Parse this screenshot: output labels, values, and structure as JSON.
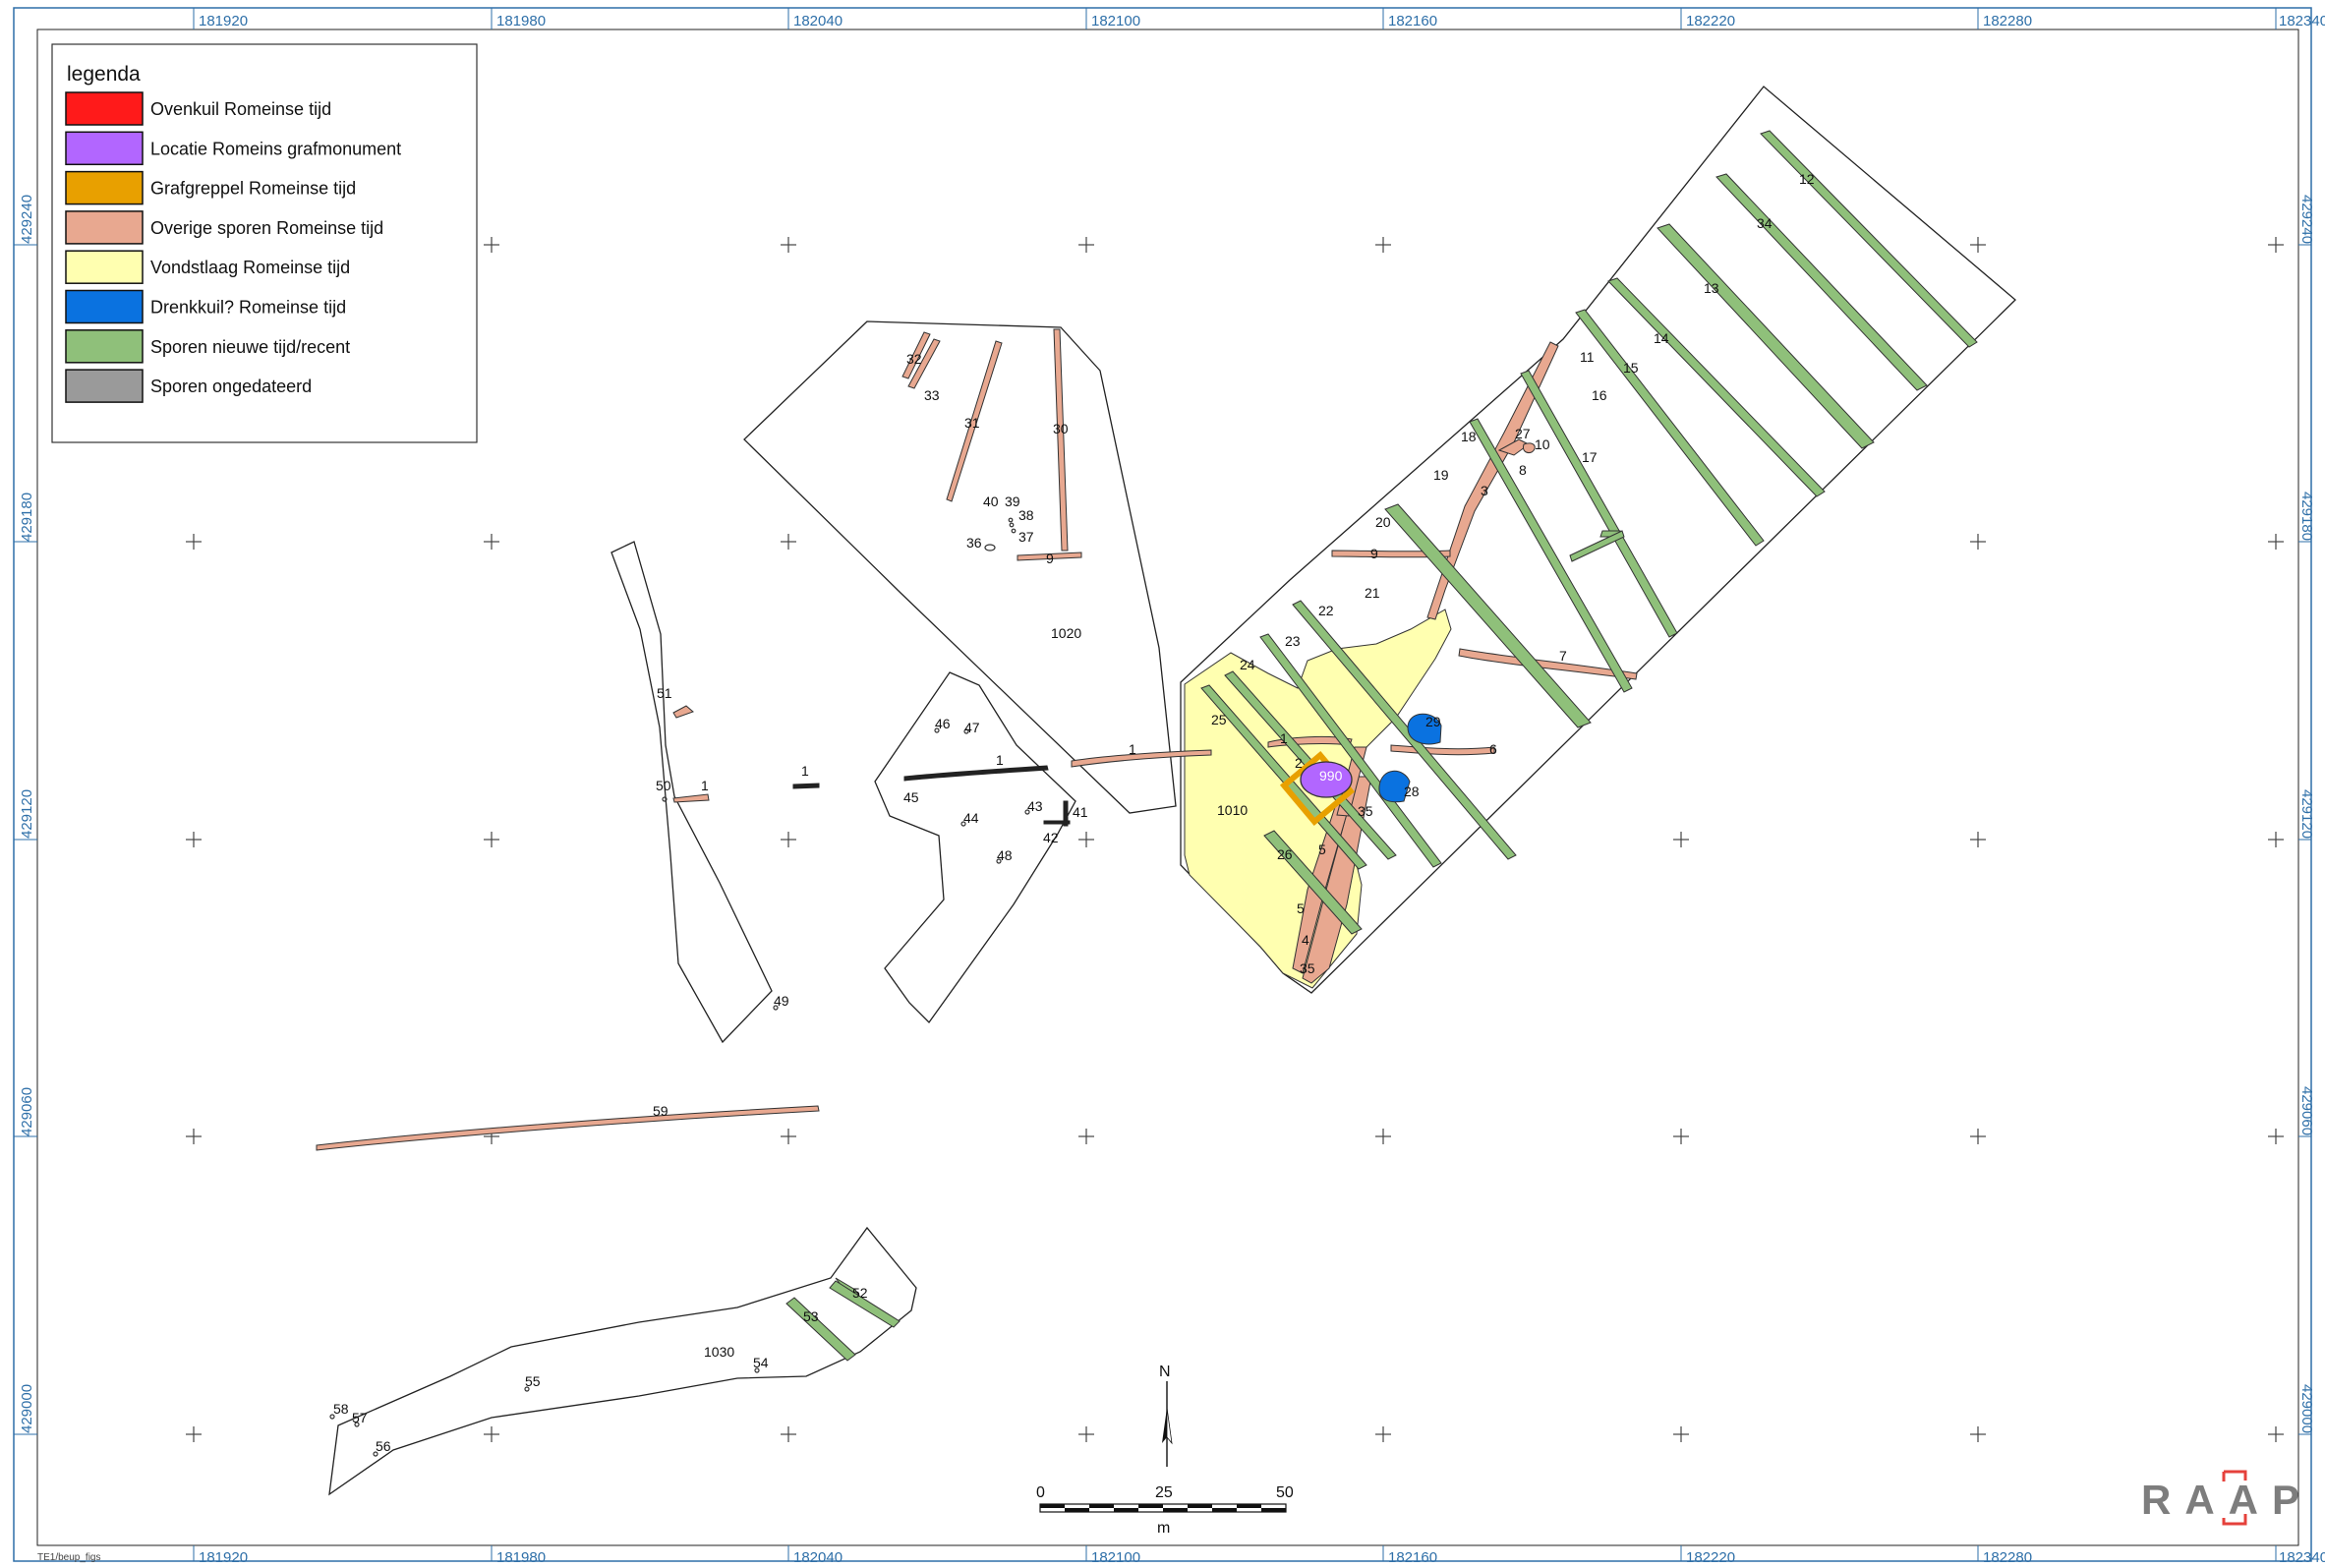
{
  "legend": {
    "title": "legenda",
    "items": [
      {
        "label": "Ovenkuil Romeinse tijd",
        "color": "#ff1a1a"
      },
      {
        "label": "Locatie Romeins grafmonument",
        "color": "#b266ff"
      },
      {
        "label": "Grafgreppel Romeinse tijd",
        "color": "#e8a000"
      },
      {
        "label": "Overige sporen Romeinse tijd",
        "color": "#e8a890"
      },
      {
        "label": "Vondstlaag Romeinse tijd",
        "color": "#ffffb0"
      },
      {
        "label": "Drenkkuil? Romeinse tijd",
        "color": "#0a72e0"
      },
      {
        "label": "Sporen nieuwe tijd/recent",
        "color": "#8fc07a"
      },
      {
        "label": "Sporen ongedateerd",
        "color": "#9a9a9a"
      }
    ]
  },
  "grid": {
    "x_labels": [
      "181920",
      "181980",
      "182040",
      "182100",
      "182160",
      "182220",
      "182280",
      "182340"
    ],
    "y_labels": [
      "429240",
      "429180",
      "429120",
      "429060",
      "429000"
    ]
  },
  "features": {
    "area_labels": [
      "1020",
      "1010",
      "1030",
      "990"
    ],
    "trace_labels": [
      "1",
      "2",
      "3",
      "4",
      "5",
      "5",
      "5",
      "6",
      "7",
      "8",
      "9",
      "9",
      "10",
      "11",
      "12",
      "13",
      "14",
      "15",
      "16",
      "17",
      "18",
      "19",
      "20",
      "21",
      "22",
      "23",
      "24",
      "25",
      "26",
      "27",
      "28",
      "29",
      "30",
      "31",
      "32",
      "33",
      "34",
      "35",
      "35",
      "36",
      "37",
      "38",
      "39",
      "40",
      "41",
      "42",
      "43",
      "44",
      "45",
      "46",
      "47",
      "48",
      "49",
      "50",
      "51",
      "52",
      "53",
      "54",
      "55",
      "56",
      "57",
      "58",
      "59",
      "1",
      "1",
      "1",
      "1"
    ]
  },
  "scalebar": {
    "ticks": [
      "0",
      "25",
      "50"
    ],
    "unit": "m"
  },
  "north": "N",
  "footer": "TE1/beup_figs",
  "logo": "RAAP"
}
